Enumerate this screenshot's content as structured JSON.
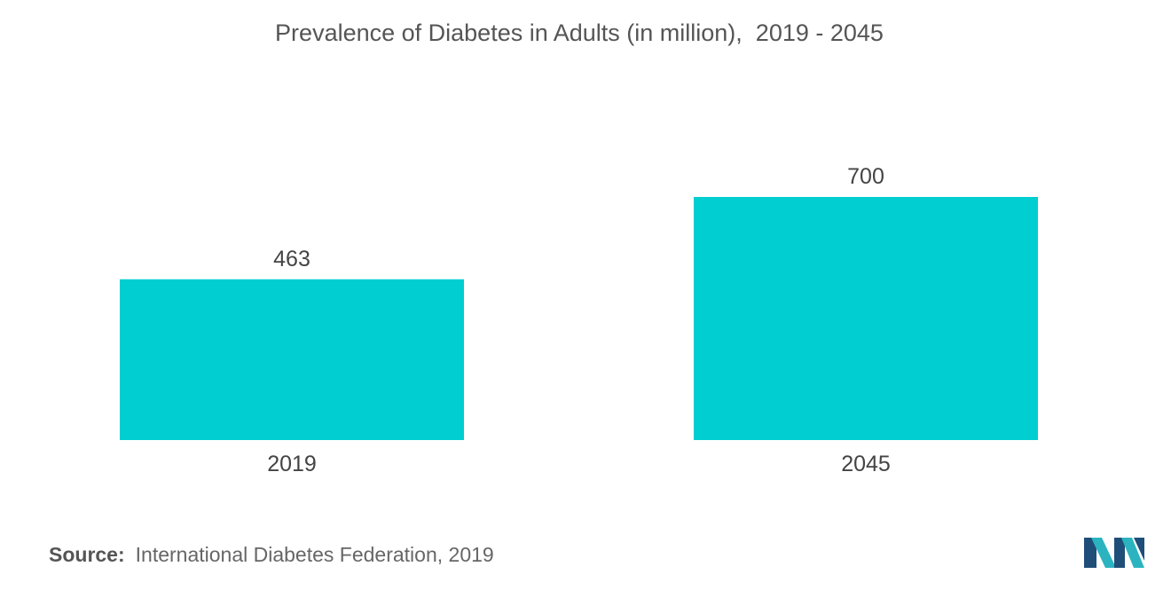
{
  "chart_data": {
    "type": "bar",
    "title": "Prevalence of Diabetes in Adults (in million),  2019 - 2045",
    "categories": [
      "2019",
      "2045"
    ],
    "values": [
      463,
      700
    ],
    "data_labels": [
      "463",
      "700"
    ],
    "xlabel": "",
    "ylabel": "",
    "ylim": [
      0,
      800
    ],
    "grid": false,
    "legend": "none",
    "colors": {
      "bar": "#00CED1"
    }
  },
  "source": {
    "label": "Source:",
    "text": "International Diabetes Federation, 2019"
  },
  "logo": {
    "icon": "mordor-intelligence-logo-icon"
  }
}
